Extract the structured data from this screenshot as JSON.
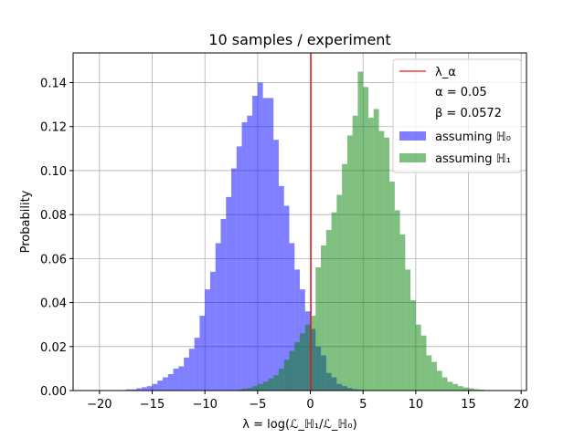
{
  "chart_data": {
    "type": "bar",
    "title": "10 samples / experiment",
    "xlabel": "λ = log(ℒ_ℍ₁/ℒ_ℍ₀)",
    "ylabel": "Probability",
    "xlim": [
      -22.5,
      20.5
    ],
    "ylim": [
      0,
      0.1535
    ],
    "xticks": [
      -20,
      -15,
      -10,
      -5,
      0,
      5,
      10,
      15,
      20
    ],
    "xtick_labels": [
      "−20",
      "−15",
      "−10",
      "−5",
      "0",
      "5",
      "10",
      "15",
      "20"
    ],
    "yticks": [
      0.0,
      0.02,
      0.04,
      0.06,
      0.08,
      0.1,
      0.12,
      0.14
    ],
    "ytick_labels": [
      "0.00",
      "0.02",
      "0.04",
      "0.06",
      "0.08",
      "0.10",
      "0.12",
      "0.14"
    ],
    "grid": true,
    "legend_placement": "upper right",
    "threshold": {
      "name": "λ_α",
      "x": 0.05,
      "color": "#e8191a"
    },
    "stats": {
      "alpha_label": "α = 0.05",
      "beta_label": "β = 0.0572"
    },
    "series": [
      {
        "name": "assuming ℍ₀",
        "color": "#0000ff",
        "opacity": 0.5,
        "bin_width": 0.5,
        "bin_left_edges": [
          -17.5,
          -17,
          -16.5,
          -16,
          -15.5,
          -15,
          -14.5,
          -14,
          -13.5,
          -13,
          -12.5,
          -12,
          -11.5,
          -11,
          -10.5,
          -10,
          -9.5,
          -9,
          -8.5,
          -8,
          -7.5,
          -7,
          -6.5,
          -6,
          -5.5,
          -5,
          -4.5,
          -4,
          -3.5,
          -3,
          -2.5,
          -2,
          -1.5,
          -1,
          -0.5,
          0,
          0.5,
          1,
          1.5,
          2,
          2.5,
          3,
          3.5,
          4,
          4.5,
          5,
          5.5
        ],
        "values": [
          0.0005,
          0.0005,
          0.001,
          0.0015,
          0.002,
          0.003,
          0.0045,
          0.006,
          0.0075,
          0.01,
          0.011,
          0.015,
          0.019,
          0.024,
          0.034,
          0.046,
          0.054,
          0.067,
          0.078,
          0.088,
          0.101,
          0.111,
          0.122,
          0.125,
          0.134,
          0.14,
          0.133,
          0.133,
          0.114,
          0.093,
          0.084,
          0.067,
          0.055,
          0.046,
          0.036,
          0.028,
          0.02,
          0.016,
          0.008,
          0.006,
          0.003,
          0.002,
          0.0012,
          0.0006,
          0.0004,
          0.0002,
          0.0001
        ]
      },
      {
        "name": "assuming ℍ₁",
        "color": "#008000",
        "opacity": 0.5,
        "bin_width": 0.5,
        "bin_left_edges": [
          -7,
          -6.5,
          -6,
          -5.5,
          -5,
          -4.5,
          -4,
          -3.5,
          -3,
          -2.5,
          -2,
          -1.5,
          -1,
          -0.5,
          0,
          0.5,
          1,
          1.5,
          2,
          2.5,
          3,
          3.5,
          4,
          4.5,
          5,
          5.5,
          6,
          6.5,
          7,
          7.5,
          8,
          8.5,
          9,
          9.5,
          10,
          10.5,
          11,
          11.5,
          12,
          12.5,
          13,
          13.5,
          14,
          14.5,
          15,
          15.5,
          16,
          16.5,
          17
        ],
        "values": [
          0.0004,
          0.0008,
          0.0012,
          0.002,
          0.003,
          0.004,
          0.0055,
          0.007,
          0.01,
          0.014,
          0.018,
          0.022,
          0.026,
          0.03,
          0.034,
          0.056,
          0.066,
          0.073,
          0.081,
          0.089,
          0.103,
          0.116,
          0.125,
          0.145,
          0.138,
          0.124,
          0.128,
          0.118,
          0.115,
          0.095,
          0.082,
          0.071,
          0.055,
          0.041,
          0.03,
          0.025,
          0.016,
          0.013,
          0.009,
          0.006,
          0.004,
          0.003,
          0.002,
          0.0014,
          0.001,
          0.0006,
          0.0004,
          0.0002,
          0.0001
        ]
      }
    ]
  }
}
